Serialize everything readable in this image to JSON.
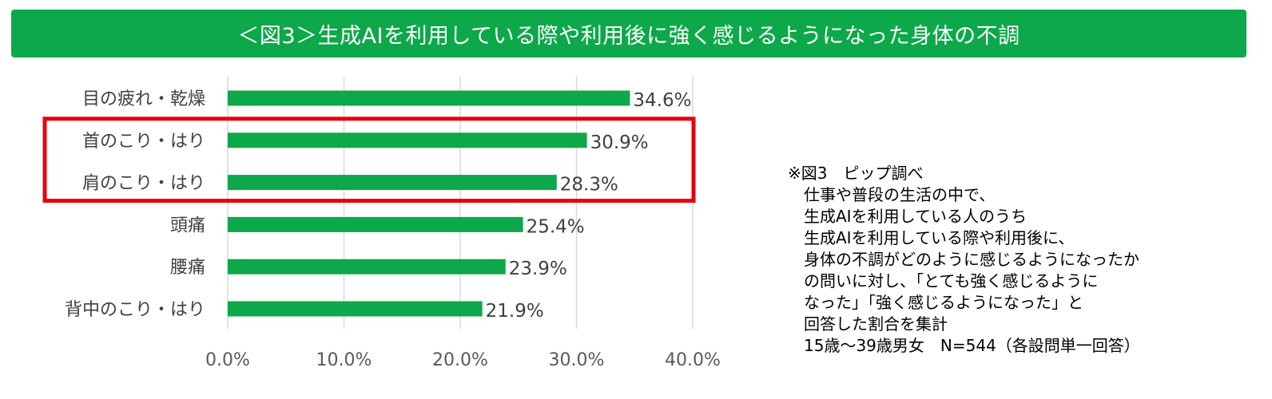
{
  "chart_data": {
    "type": "bar",
    "orientation": "horizontal",
    "title": "＜図3＞生成AIを利用している際や利用後に強く感じるようになった身体の不調",
    "categories": [
      "目の疲れ・乾燥",
      "首のこり・はり",
      "肩のこり・はり",
      "頭痛",
      "腰痛",
      "背中のこり・はり"
    ],
    "values": [
      34.6,
      30.9,
      28.3,
      25.4,
      23.9,
      21.9
    ],
    "value_labels": [
      "34.6%",
      "30.9%",
      "28.3%",
      "25.4%",
      "23.9%",
      "21.9%"
    ],
    "xlim": [
      0,
      40
    ],
    "x_ticks": [
      0,
      10,
      20,
      30,
      40
    ],
    "x_tick_labels": [
      "0.0%",
      "10.0%",
      "20.0%",
      "30.0%",
      "40.0%"
    ],
    "grid": "vertical",
    "highlighted_categories": [
      "首のこり・はり",
      "肩のこり・はり"
    ],
    "colors": {
      "bar": "#0da849",
      "title_bg": "#0da849",
      "highlight": "#e60012",
      "grid": "#d9d9d9"
    }
  },
  "note": {
    "lines": [
      "※図3　ピップ調べ",
      "　仕事や普段の生活の中で、",
      "　生成AIを利用している人のうち",
      "　生成AIを利用している際や利用後に、",
      "　身体の不調がどのように感じるようになったか",
      "　の問いに対し、「とても強く感じるように",
      "　なった」「強く感じるようになった」と",
      "　回答した割合を集計",
      "　15歳～39歳男女　N=544（各設問単一回答）"
    ]
  }
}
